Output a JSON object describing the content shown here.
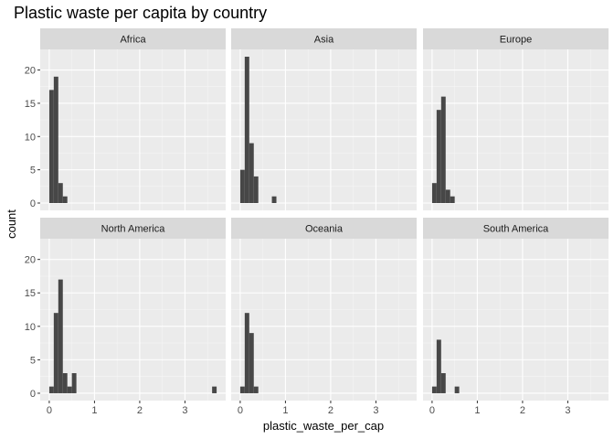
{
  "chart_data": {
    "type": "bar",
    "title": "Plastic waste per capita by country",
    "xlabel": "plastic_waste_per_cap",
    "ylabel": "count",
    "bin_width": 0.1,
    "xlim": [
      -0.2,
      3.9
    ],
    "ylim": [
      -1.1,
      23.1
    ],
    "x_ticks": [
      0,
      1,
      2,
      3
    ],
    "y_ticks": [
      0,
      5,
      10,
      15,
      20
    ],
    "colors": {
      "bar": "#474747",
      "panel": "#ebebeb",
      "strip": "#d9d9d9",
      "grid_major": "#ffffff"
    },
    "facets": [
      {
        "name": "Africa",
        "bins": [
          [
            0.0,
            17
          ],
          [
            0.1,
            19
          ],
          [
            0.2,
            3
          ],
          [
            0.3,
            1
          ]
        ]
      },
      {
        "name": "Asia",
        "bins": [
          [
            0.0,
            5
          ],
          [
            0.1,
            22
          ],
          [
            0.2,
            9
          ],
          [
            0.3,
            4
          ],
          [
            0.7,
            1
          ]
        ]
      },
      {
        "name": "Europe",
        "bins": [
          [
            0.0,
            3
          ],
          [
            0.1,
            14
          ],
          [
            0.2,
            16
          ],
          [
            0.3,
            2
          ],
          [
            0.4,
            1
          ]
        ]
      },
      {
        "name": "North America",
        "bins": [
          [
            0.0,
            1
          ],
          [
            0.1,
            12
          ],
          [
            0.2,
            17
          ],
          [
            0.3,
            3
          ],
          [
            0.4,
            1
          ],
          [
            0.5,
            3
          ],
          [
            3.6,
            1
          ]
        ]
      },
      {
        "name": "Oceania",
        "bins": [
          [
            0.0,
            1
          ],
          [
            0.1,
            12
          ],
          [
            0.2,
            9
          ],
          [
            0.3,
            1
          ]
        ]
      },
      {
        "name": "South America",
        "bins": [
          [
            0.0,
            1
          ],
          [
            0.1,
            8
          ],
          [
            0.2,
            3
          ],
          [
            0.5,
            1
          ]
        ]
      }
    ]
  }
}
